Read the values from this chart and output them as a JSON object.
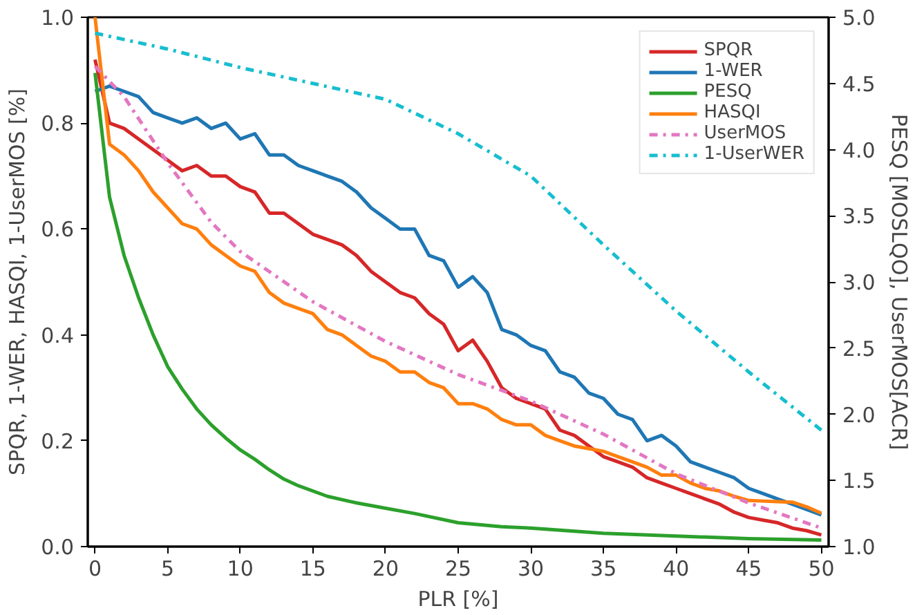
{
  "chart_data": {
    "type": "line",
    "xlabel": "PLR [%]",
    "ylabel": "SPQR, 1-WER, HASQI, 1-UserMOS [%]",
    "y2label": "PESQ [MOSLQO], UserMOS[ACR]",
    "xlim": [
      -0.5,
      50.5
    ],
    "ylim": [
      0,
      1
    ],
    "y2lim": [
      1,
      5
    ],
    "xticks": [
      0,
      5,
      10,
      15,
      20,
      25,
      30,
      35,
      40,
      45,
      50
    ],
    "yticks": [
      {
        "value": 0,
        "label": "0.0"
      },
      {
        "value": 0.2,
        "label": "0.2"
      },
      {
        "value": 0.4,
        "label": "0.4"
      },
      {
        "value": 0.6,
        "label": "0.6"
      },
      {
        "value": 0.8,
        "label": "0.8"
      },
      {
        "value": 1,
        "label": "1.0"
      }
    ],
    "y2ticks": [
      {
        "value": 1,
        "label": "1.0"
      },
      {
        "value": 1.5,
        "label": "1.5"
      },
      {
        "value": 2,
        "label": "2.0"
      },
      {
        "value": 2.5,
        "label": "2.5"
      },
      {
        "value": 3,
        "label": "3.0"
      },
      {
        "value": 3.5,
        "label": "3.5"
      },
      {
        "value": 4,
        "label": "4.0"
      },
      {
        "value": 4.5,
        "label": "4.5"
      },
      {
        "value": 5,
        "label": "5.0"
      }
    ],
    "grid": false,
    "legend": "top right",
    "marker": "none",
    "series": [
      {
        "name": "SPQR",
        "color": "#d62728",
        "line_style": "solid",
        "x": [
          0,
          1,
          2,
          3,
          4,
          5,
          6,
          7,
          8,
          9,
          10,
          11,
          12,
          13,
          14,
          15,
          16,
          17,
          18,
          19,
          20,
          21,
          22,
          23,
          24,
          25,
          26,
          27,
          28,
          29,
          30,
          31,
          32,
          33,
          34,
          35,
          36,
          37,
          38,
          39,
          40,
          41,
          42,
          43,
          44,
          45,
          46,
          47,
          48,
          49,
          50
        ],
        "values": [
          0.92,
          0.8,
          0.79,
          0.77,
          0.75,
          0.73,
          0.71,
          0.72,
          0.7,
          0.7,
          0.68,
          0.67,
          0.63,
          0.63,
          0.61,
          0.59,
          0.58,
          0.57,
          0.55,
          0.52,
          0.5,
          0.48,
          0.47,
          0.44,
          0.42,
          0.37,
          0.39,
          0.35,
          0.3,
          0.28,
          0.27,
          0.26,
          0.22,
          0.21,
          0.19,
          0.17,
          0.16,
          0.15,
          0.13,
          0.12,
          0.11,
          0.1,
          0.09,
          0.08,
          0.065,
          0.055,
          0.05,
          0.045,
          0.035,
          0.03,
          0.022
        ]
      },
      {
        "name": "1-WER",
        "color": "#1f77b4",
        "line_style": "solid",
        "x": [
          0,
          1,
          2,
          3,
          4,
          5,
          6,
          7,
          8,
          9,
          10,
          11,
          12,
          13,
          14,
          15,
          16,
          17,
          18,
          19,
          20,
          21,
          22,
          23,
          24,
          25,
          26,
          27,
          28,
          29,
          30,
          31,
          32,
          33,
          34,
          35,
          36,
          37,
          38,
          39,
          40,
          41,
          42,
          43,
          44,
          45,
          46,
          47,
          48,
          49,
          50
        ],
        "values": [
          0.86,
          0.87,
          0.86,
          0.85,
          0.82,
          0.81,
          0.8,
          0.81,
          0.79,
          0.8,
          0.77,
          0.78,
          0.74,
          0.74,
          0.72,
          0.71,
          0.7,
          0.69,
          0.67,
          0.64,
          0.62,
          0.6,
          0.6,
          0.55,
          0.54,
          0.49,
          0.51,
          0.48,
          0.41,
          0.4,
          0.38,
          0.37,
          0.33,
          0.32,
          0.29,
          0.28,
          0.25,
          0.24,
          0.2,
          0.21,
          0.19,
          0.16,
          0.15,
          0.14,
          0.13,
          0.11,
          0.1,
          0.09,
          0.08,
          0.07,
          0.06
        ]
      },
      {
        "name": "PESQ",
        "color": "#2ca02c",
        "line_style": "solid",
        "axis": "y2",
        "x": [
          0,
          1,
          2,
          3,
          4,
          5,
          6,
          7,
          8,
          9,
          10,
          11,
          12,
          13,
          14,
          16,
          18,
          20,
          22,
          25,
          28,
          30,
          35,
          40,
          45,
          50
        ],
        "values": [
          4.58,
          3.64,
          3.2,
          2.88,
          2.6,
          2.36,
          2.19,
          2.04,
          1.92,
          1.82,
          1.73,
          1.66,
          1.58,
          1.51,
          1.46,
          1.38,
          1.33,
          1.29,
          1.25,
          1.18,
          1.15,
          1.14,
          1.1,
          1.08,
          1.06,
          1.05
        ]
      },
      {
        "name": "HASQI",
        "color": "#ff7f0e",
        "line_style": "solid",
        "x": [
          0,
          1,
          2,
          3,
          4,
          5,
          6,
          7,
          8,
          9,
          10,
          11,
          12,
          13,
          14,
          15,
          16,
          17,
          18,
          19,
          20,
          21,
          22,
          23,
          24,
          25,
          26,
          27,
          28,
          29,
          30,
          31,
          32,
          33,
          34,
          35,
          36,
          37,
          38,
          39,
          40,
          41,
          42,
          43,
          44,
          45,
          46,
          47,
          48,
          49,
          50
        ],
        "values": [
          1.0,
          0.76,
          0.74,
          0.71,
          0.67,
          0.64,
          0.61,
          0.6,
          0.57,
          0.55,
          0.53,
          0.52,
          0.48,
          0.46,
          0.45,
          0.44,
          0.41,
          0.4,
          0.38,
          0.36,
          0.35,
          0.33,
          0.33,
          0.31,
          0.3,
          0.27,
          0.27,
          0.26,
          0.24,
          0.23,
          0.23,
          0.21,
          0.2,
          0.19,
          0.185,
          0.18,
          0.17,
          0.16,
          0.15,
          0.135,
          0.135,
          0.12,
          0.11,
          0.105,
          0.095,
          0.087,
          0.086,
          0.085,
          0.084,
          0.075,
          0.063
        ]
      },
      {
        "name": "UserMOS",
        "color": "#e377c2",
        "line_style": "dashdot",
        "axis": "y2",
        "x": [
          0,
          2,
          5,
          8,
          10,
          15,
          20,
          25,
          30,
          35,
          40,
          45,
          50
        ],
        "values": [
          4.63,
          4.4,
          3.9,
          3.45,
          3.23,
          2.85,
          2.55,
          2.3,
          2.1,
          1.85,
          1.55,
          1.33,
          1.14
        ]
      },
      {
        "name": "1-UserWER",
        "color": "#17becf",
        "line_style": "dashdot",
        "x": [
          0,
          5,
          10,
          15,
          20,
          25,
          30,
          35,
          40,
          45,
          50
        ],
        "values": [
          0.97,
          0.94,
          0.905,
          0.875,
          0.845,
          0.78,
          0.7,
          0.57,
          0.445,
          0.33,
          0.22
        ]
      }
    ]
  }
}
